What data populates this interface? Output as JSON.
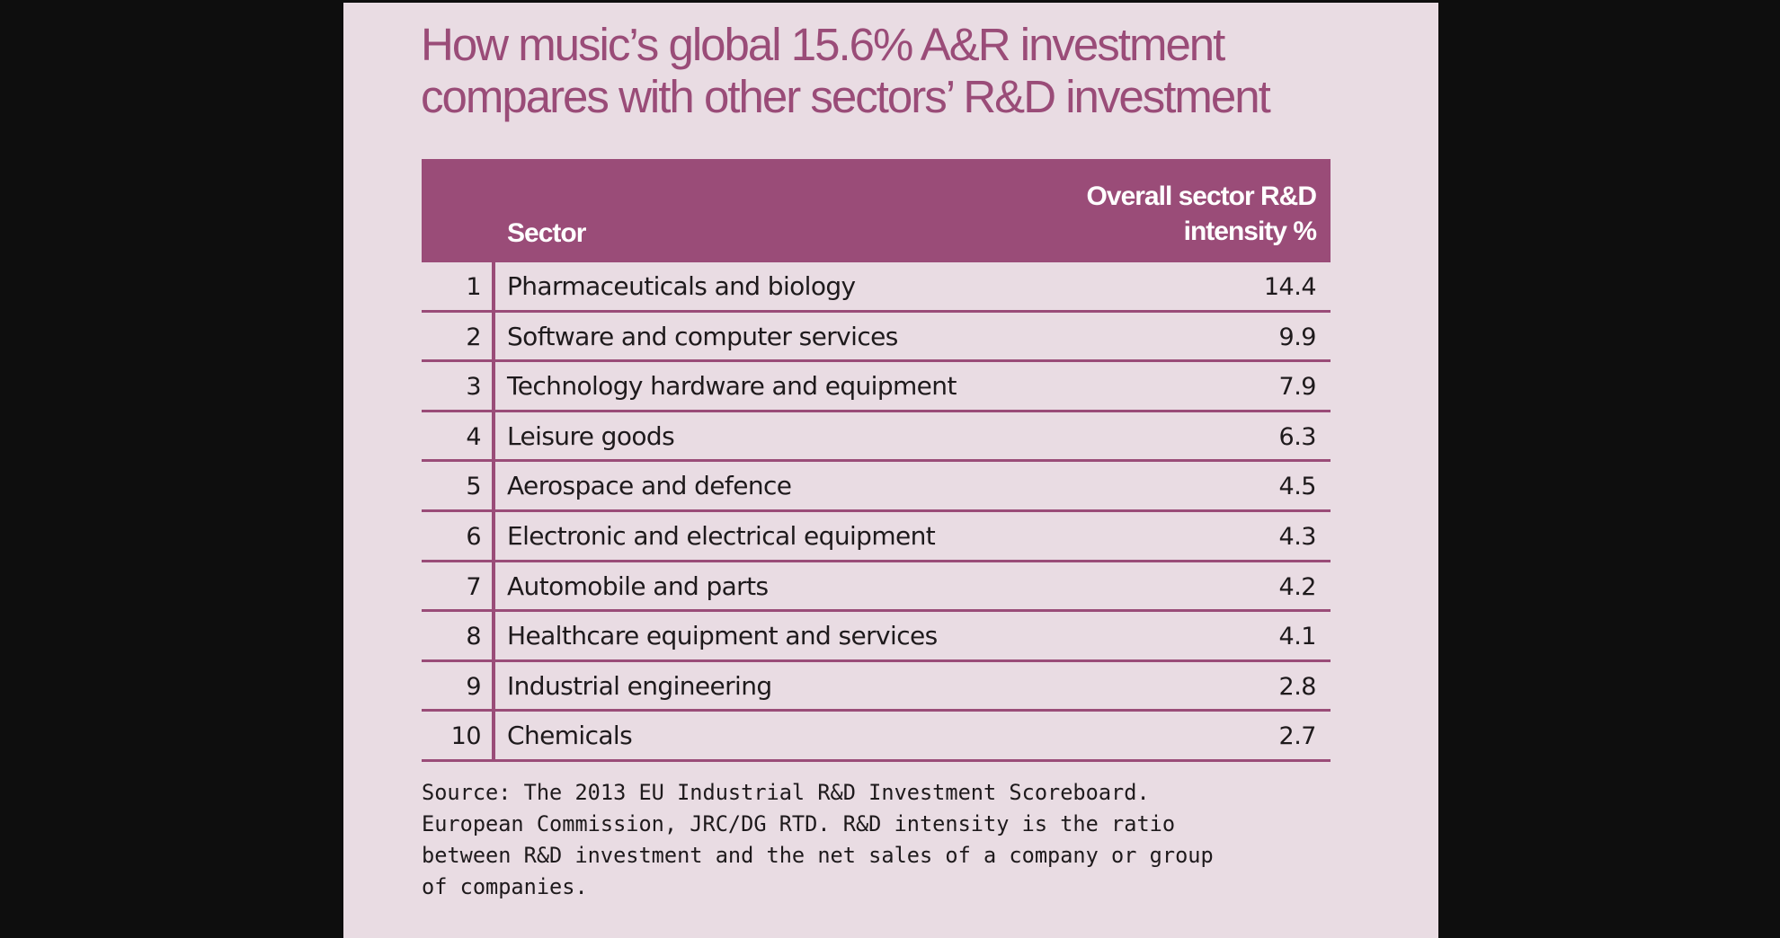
{
  "title": "How music’s global 15.6% A&R investment compares with other sectors’ R&D investment",
  "table": {
    "headers": {
      "sector": "Sector",
      "value": "Overall sector R&D\nintensity %"
    },
    "rows": [
      {
        "rank": "1",
        "sector": "Pharmaceuticals and biology",
        "value": "14.4"
      },
      {
        "rank": "2",
        "sector": "Software and computer services",
        "value": "9.9"
      },
      {
        "rank": "3",
        "sector": "Technology hardware and equipment",
        "value": "7.9"
      },
      {
        "rank": "4",
        "sector": "Leisure goods",
        "value": "6.3"
      },
      {
        "rank": "5",
        "sector": "Aerospace and defence",
        "value": "4.5"
      },
      {
        "rank": "6",
        "sector": "Electronic and electrical equipment",
        "value": "4.3"
      },
      {
        "rank": "7",
        "sector": "Automobile and parts",
        "value": "4.2"
      },
      {
        "rank": "8",
        "sector": "Healthcare equipment and services",
        "value": "4.1"
      },
      {
        "rank": "9",
        "sector": "Industrial engineering",
        "value": "2.8"
      },
      {
        "rank": "10",
        "sector": "Chemicals",
        "value": "2.7"
      }
    ]
  },
  "source": "Source: The 2013 EU Industrial R&D Investment Scoreboard.\nEuropean Commission, JRC/DG RTD. R&D intensity is the ratio\nbetween R&D investment and the net sales of a company or group\nof companies.",
  "colors": {
    "accent": "#9a4c78",
    "panel_background": "#e9dce3",
    "page_background": "#0e0e0e",
    "text": "#1e1a1c"
  },
  "chart_data": {
    "type": "table",
    "title": "How music’s global 15.6% A&R investment compares with other sectors’ R&D investment",
    "columns": [
      "",
      "Sector",
      "Overall sector R&D intensity %"
    ],
    "categories": [
      "Pharmaceuticals and biology",
      "Software and computer services",
      "Technology hardware and equipment",
      "Leisure goods",
      "Aerospace and defence",
      "Electronic and electrical equipment",
      "Automobile and parts",
      "Healthcare equipment and services",
      "Industrial engineering",
      "Chemicals"
    ],
    "ranks": [
      1,
      2,
      3,
      4,
      5,
      6,
      7,
      8,
      9,
      10
    ],
    "values": [
      14.4,
      9.9,
      7.9,
      6.3,
      4.5,
      4.3,
      4.2,
      4.1,
      2.8,
      2.7
    ]
  }
}
